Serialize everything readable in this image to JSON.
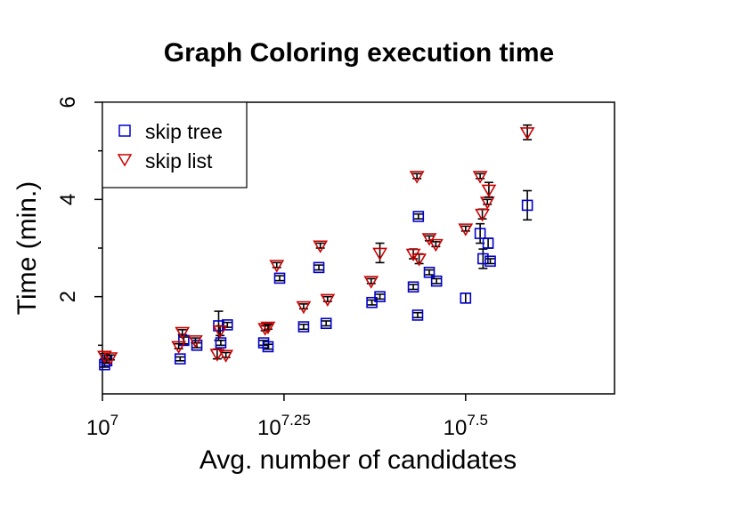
{
  "chart_data": {
    "type": "scatter",
    "title": "Graph Coloring execution time",
    "xlabel": "Avg. number of candidates",
    "ylabel": "Time (min.)",
    "x_scale": "log10",
    "xlim": [
      7.0,
      7.705
    ],
    "ylim": [
      0,
      6
    ],
    "x_ticks": [
      {
        "base": "10",
        "exp": "7"
      },
      {
        "base": "10",
        "exp": "7.25"
      },
      {
        "base": "10",
        "exp": "7.5"
      }
    ],
    "y_ticks": [
      "2",
      "4",
      "6"
    ],
    "legend_position": "top-left",
    "grid": false,
    "series": [
      {
        "name": "skip tree",
        "marker": "square",
        "color": "#0000cc",
        "points": [
          {
            "x": 7.003,
            "y": 0.6,
            "err": 0.05
          },
          {
            "x": 7.006,
            "y": 0.68,
            "err": 0.05
          },
          {
            "x": 7.107,
            "y": 0.72,
            "err": 0.04
          },
          {
            "x": 7.112,
            "y": 1.1,
            "err": 0.07
          },
          {
            "x": 7.13,
            "y": 1.0,
            "err": 0.05
          },
          {
            "x": 7.16,
            "y": 1.4,
            "err": 0.3
          },
          {
            "x": 7.163,
            "y": 1.05,
            "err": 0.05
          },
          {
            "x": 7.172,
            "y": 1.42,
            "err": 0.05
          },
          {
            "x": 7.222,
            "y": 1.05,
            "err": 0.05
          },
          {
            "x": 7.228,
            "y": 0.97,
            "err": 0.05
          },
          {
            "x": 7.244,
            "y": 2.38,
            "err": 0.05
          },
          {
            "x": 7.277,
            "y": 1.38,
            "err": 0.05
          },
          {
            "x": 7.298,
            "y": 2.6,
            "err": 0.05
          },
          {
            "x": 7.308,
            "y": 1.45,
            "err": 0.05
          },
          {
            "x": 7.371,
            "y": 1.88,
            "err": 0.05
          },
          {
            "x": 7.382,
            "y": 2.0,
            "err": 0.05
          },
          {
            "x": 7.428,
            "y": 2.2,
            "err": 0.05
          },
          {
            "x": 7.434,
            "y": 1.62,
            "err": 0.05
          },
          {
            "x": 7.435,
            "y": 3.65,
            "err": 0.05
          },
          {
            "x": 7.45,
            "y": 2.5,
            "err": 0.05
          },
          {
            "x": 7.46,
            "y": 2.32,
            "err": 0.05
          },
          {
            "x": 7.5,
            "y": 1.97,
            "err": 0.1
          },
          {
            "x": 7.52,
            "y": 3.3,
            "err": 0.2
          },
          {
            "x": 7.524,
            "y": 2.78,
            "err": 0.2
          },
          {
            "x": 7.531,
            "y": 3.1,
            "err": 0.1
          },
          {
            "x": 7.534,
            "y": 2.73,
            "err": 0.05
          },
          {
            "x": 7.585,
            "y": 3.88,
            "err": 0.3
          }
        ]
      },
      {
        "name": "skip list",
        "marker": "triangle-down",
        "color": "#cc0000",
        "points": [
          {
            "x": 7.003,
            "y": 0.78,
            "err": 0.05
          },
          {
            "x": 7.011,
            "y": 0.75,
            "err": 0.05
          },
          {
            "x": 7.105,
            "y": 0.98,
            "err": 0.05
          },
          {
            "x": 7.11,
            "y": 1.27,
            "err": 0.05
          },
          {
            "x": 7.128,
            "y": 1.1,
            "err": 0.05
          },
          {
            "x": 7.158,
            "y": 0.82,
            "err": 0.1
          },
          {
            "x": 7.162,
            "y": 1.3,
            "err": 0.1
          },
          {
            "x": 7.17,
            "y": 0.8,
            "err": 0.05
          },
          {
            "x": 7.224,
            "y": 1.35,
            "err": 0.05
          },
          {
            "x": 7.228,
            "y": 1.38,
            "err": 0.05
          },
          {
            "x": 7.24,
            "y": 2.65,
            "err": 0.05
          },
          {
            "x": 7.277,
            "y": 1.8,
            "err": 0.05
          },
          {
            "x": 7.3,
            "y": 3.05,
            "err": 0.05
          },
          {
            "x": 7.31,
            "y": 1.95,
            "err": 0.05
          },
          {
            "x": 7.37,
            "y": 2.32,
            "err": 0.05
          },
          {
            "x": 7.382,
            "y": 2.9,
            "err": 0.2
          },
          {
            "x": 7.428,
            "y": 2.88,
            "err": 0.1
          },
          {
            "x": 7.433,
            "y": 4.48,
            "err": 0.05
          },
          {
            "x": 7.436,
            "y": 2.78,
            "err": 0.1
          },
          {
            "x": 7.45,
            "y": 3.2,
            "err": 0.05
          },
          {
            "x": 7.459,
            "y": 3.08,
            "err": 0.05
          },
          {
            "x": 7.5,
            "y": 3.4,
            "err": 0.05
          },
          {
            "x": 7.52,
            "y": 4.48,
            "err": 0.05
          },
          {
            "x": 7.523,
            "y": 3.7,
            "err": 0.1
          },
          {
            "x": 7.53,
            "y": 3.95,
            "err": 0.05
          },
          {
            "x": 7.532,
            "y": 4.2,
            "err": 0.15
          },
          {
            "x": 7.585,
            "y": 5.38,
            "err": 0.15
          }
        ]
      }
    ]
  }
}
